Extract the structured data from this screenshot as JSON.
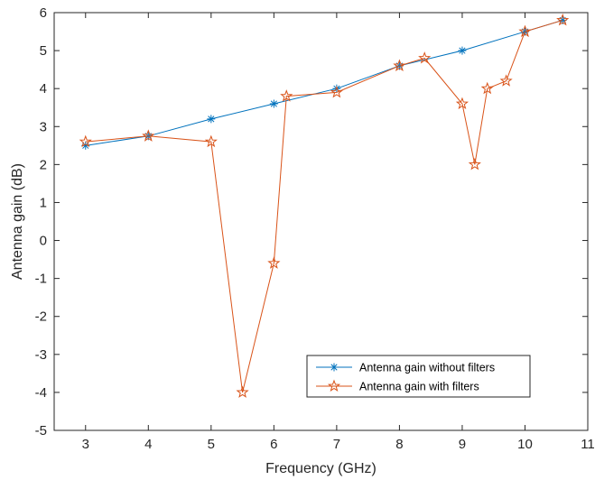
{
  "chart_data": {
    "type": "line",
    "title": "",
    "xlabel": "Frequency (GHz)",
    "ylabel": "Antenna gain (dB)",
    "xlim": [
      2.5,
      11
    ],
    "ylim": [
      -5,
      6
    ],
    "xticks": [
      3,
      4,
      5,
      6,
      7,
      8,
      9,
      10,
      11
    ],
    "yticks": [
      -5,
      -4,
      -3,
      -2,
      -1,
      0,
      1,
      2,
      3,
      4,
      5,
      6
    ],
    "grid": false,
    "legend_position": "bottom-right",
    "series": [
      {
        "name": "Antenna gain without filters",
        "color": "#0072BD",
        "marker": "asterisk",
        "x": [
          3,
          4,
          5,
          6,
          7,
          8,
          9,
          10,
          10.6
        ],
        "y": [
          2.5,
          2.75,
          3.2,
          3.6,
          4.0,
          4.6,
          5.0,
          5.5,
          5.8
        ]
      },
      {
        "name": "Antenna gain with filters",
        "color": "#D95319",
        "marker": "pentagram",
        "x": [
          3,
          4,
          5,
          5.5,
          6,
          6.2,
          7,
          8,
          8.4,
          9,
          9.2,
          9.4,
          9.7,
          10,
          10.6
        ],
        "y": [
          2.6,
          2.75,
          2.6,
          -4.0,
          -0.6,
          3.8,
          3.9,
          4.6,
          4.8,
          3.6,
          2.0,
          4.0,
          4.2,
          5.5,
          5.8
        ]
      }
    ]
  }
}
